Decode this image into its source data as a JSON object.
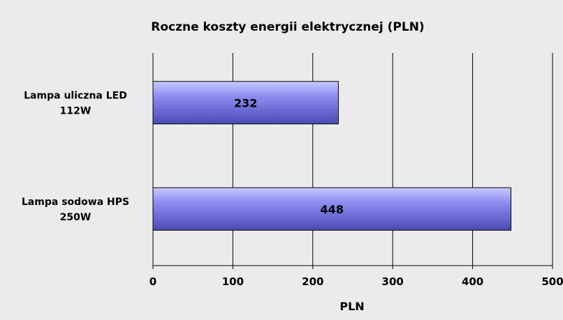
{
  "chart_data": {
    "type": "bar",
    "orientation": "horizontal",
    "title": "Roczne koszty energii elektrycznej (PLN)",
    "xlabel": "PLN",
    "ylabel": "",
    "categories": [
      "Lampa uliczna LED\n112W",
      "Lampa sodowa HPS\n250W"
    ],
    "values": [
      232,
      448
    ],
    "data_labels": [
      "232",
      "448"
    ],
    "xlim": [
      0,
      500
    ],
    "xticks": [
      0,
      100,
      200,
      300,
      400,
      500
    ],
    "grid": "vertical",
    "legend": "none",
    "colors": {
      "background": "#ebebeb",
      "bar_light": "#c9c9ff",
      "bar_mid": "#8c8cf2",
      "bar_dark": "#4b4bb4",
      "bar_border": "#000000",
      "grid": "#000000"
    }
  }
}
